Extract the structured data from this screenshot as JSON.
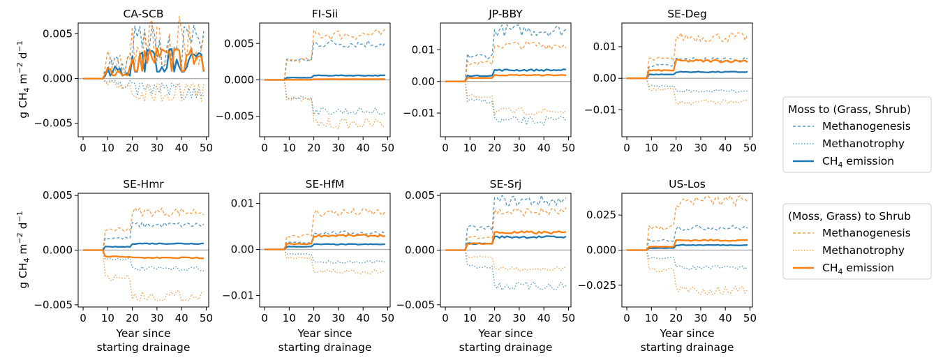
{
  "colors": {
    "blue": "#1f77b4",
    "orange": "#ff7f0e",
    "zero_line": "#b0b0b0"
  },
  "ylabel_prefix": "g CH",
  "ylabel_sub": "4",
  "ylabel_mid": " m",
  "ylabel_sup1": "−2",
  "ylabel_d": " d",
  "ylabel_sup2": "−1",
  "xlabel_line1": "Year since",
  "xlabel_line2": "starting drainage",
  "legends": [
    {
      "title": "Moss to (Grass, Shrub)",
      "color": "#1f77b4",
      "items": [
        {
          "label": "Methanogenesis",
          "style": "dashed"
        },
        {
          "label": "Methanotrophy",
          "style": "dotted"
        },
        {
          "label_main": "CH",
          "label_sub": "4",
          "label_rest": " emission",
          "style": "solid"
        }
      ]
    },
    {
      "title": "(Moss, Grass) to Shrub",
      "color": "#ff7f0e",
      "items": [
        {
          "label": "Methanogenesis",
          "style": "dashed"
        },
        {
          "label": "Methanotrophy",
          "style": "dotted"
        },
        {
          "label_main": "CH",
          "label_sub": "4",
          "label_rest": " emission",
          "style": "solid"
        }
      ]
    }
  ],
  "chart_data": [
    {
      "type": "line",
      "title": "CA-SCB",
      "xlim": [
        -2,
        51
      ],
      "ylim": [
        -0.0065,
        0.0062
      ],
      "xticks": [
        0,
        10,
        20,
        30,
        40,
        50
      ],
      "yticks": [
        -0.005,
        0,
        0.005
      ],
      "ytick_labels": [
        "−0.005",
        "0.000",
        "0.005"
      ],
      "volatile": true,
      "phases": {
        "blue": {
          "gen": [
            0,
            0.0019,
            0.004
          ],
          "troph": [
            0,
            -0.0007,
            -0.0015
          ],
          "emis": [
            0,
            0.0009,
            0.0022
          ]
        },
        "orange": {
          "gen": [
            0,
            0.002,
            0.0045
          ],
          "troph": [
            0,
            -0.0008,
            -0.0017
          ],
          "emis": [
            0,
            0.001,
            0.0024
          ]
        }
      }
    },
    {
      "type": "line",
      "title": "FI-Sii",
      "xlim": [
        -2,
        51
      ],
      "ylim": [
        -0.0078,
        0.0078
      ],
      "xticks": [
        0,
        10,
        20,
        30,
        40,
        50
      ],
      "yticks": [
        -0.005,
        0,
        0.005
      ],
      "ytick_labels": [
        "−0.005",
        "0.000",
        "0.005"
      ],
      "volatile": false,
      "phases": {
        "blue": {
          "gen": [
            0,
            0.0027,
            0.005
          ],
          "troph": [
            0,
            -0.0024,
            -0.0043
          ],
          "emis": [
            0,
            0.0003,
            0.0006
          ]
        },
        "orange": {
          "gen": [
            0,
            0.0027,
            0.0062
          ],
          "troph": [
            0,
            -0.0027,
            -0.006
          ],
          "emis": [
            0,
            2e-05,
            0.0001
          ]
        }
      }
    },
    {
      "type": "line",
      "title": "JP-BBY",
      "xlim": [
        -2,
        51
      ],
      "ylim": [
        -0.0175,
        0.0185
      ],
      "xticks": [
        0,
        10,
        20,
        30,
        40,
        50
      ],
      "yticks": [
        -0.01,
        0,
        0.01
      ],
      "ytick_labels": [
        "−0.01",
        "0.00",
        "0.01"
      ],
      "volatile": false,
      "phases": {
        "blue": {
          "gen": [
            0,
            0.008,
            0.0162
          ],
          "troph": [
            0,
            -0.0062,
            -0.0125
          ],
          "emis": [
            0,
            0.0018,
            0.0036
          ]
        },
        "orange": {
          "gen": [
            0,
            0.0058,
            0.0115
          ],
          "troph": [
            0,
            -0.0047,
            -0.0095
          ],
          "emis": [
            0,
            0.0011,
            0.002
          ]
        }
      }
    },
    {
      "type": "line",
      "title": "SE-Deg",
      "xlim": [
        -2,
        51
      ],
      "ylim": [
        -0.0185,
        0.0175
      ],
      "xticks": [
        0,
        10,
        20,
        30,
        40,
        50
      ],
      "yticks": [
        -0.01,
        0,
        0.01
      ],
      "ytick_labels": [
        "−0.01",
        "0.00",
        "0.01"
      ],
      "volatile": false,
      "phases": {
        "blue": {
          "gen": [
            0,
            0.004,
            0.006
          ],
          "troph": [
            0,
            -0.0025,
            -0.004
          ],
          "emis": [
            0,
            0.0012,
            0.002
          ]
        },
        "orange": {
          "gen": [
            0,
            0.006,
            0.013
          ],
          "troph": [
            0,
            -0.0035,
            -0.0075
          ],
          "emis": [
            0,
            0.0025,
            0.0055
          ]
        }
      }
    },
    {
      "type": "line",
      "title": "SE-Hmr",
      "xlim": [
        -2,
        51
      ],
      "ylim": [
        -0.0052,
        0.0052
      ],
      "xticks": [
        0,
        10,
        20,
        30,
        40,
        50
      ],
      "yticks": [
        -0.005,
        0,
        0.005
      ],
      "ytick_labels": [
        "−0.005",
        "0.000",
        "0.005"
      ],
      "volatile": false,
      "phases": {
        "blue": {
          "gen": [
            0,
            0.0011,
            0.0023
          ],
          "troph": [
            0,
            -0.0008,
            -0.0017
          ],
          "emis": [
            0,
            0.0003,
            0.0006
          ]
        },
        "orange": {
          "gen": [
            0,
            0.0019,
            0.0035
          ],
          "troph": [
            0,
            -0.0025,
            -0.0042
          ],
          "emis": [
            0,
            -0.0006,
            -0.0007
          ]
        }
      }
    },
    {
      "type": "line",
      "title": "SE-HfM",
      "xlim": [
        -2,
        51
      ],
      "ylim": [
        -0.0125,
        0.0122
      ],
      "xticks": [
        0,
        10,
        20,
        30,
        40,
        50
      ],
      "yticks": [
        -0.01,
        0,
        0.01
      ],
      "ytick_labels": [
        "−0.01",
        "0.00",
        "0.01"
      ],
      "volatile": false,
      "phases": {
        "blue": {
          "gen": [
            0,
            0.0015,
            0.0036
          ],
          "troph": [
            0,
            -0.001,
            -0.0027
          ],
          "emis": [
            0,
            0.0006,
            0.0011
          ]
        },
        "orange": {
          "gen": [
            0,
            0.003,
            0.008
          ],
          "troph": [
            0,
            -0.0018,
            -0.0048
          ],
          "emis": [
            0,
            0.0012,
            0.003
          ]
        }
      }
    },
    {
      "type": "line",
      "title": "SE-Srj",
      "xlim": [
        -2,
        51
      ],
      "ylim": [
        -0.0052,
        0.0052
      ],
      "xticks": [
        0,
        10,
        20,
        30,
        40,
        50
      ],
      "yticks": [
        -0.005,
        0,
        0.005
      ],
      "ytick_labels": [
        "−0.005",
        "0.000",
        "0.005"
      ],
      "volatile": false,
      "phases": {
        "blue": {
          "gen": [
            0,
            0.002,
            0.0045
          ],
          "troph": [
            0,
            -0.0015,
            -0.0033
          ],
          "emis": [
            0,
            0.0006,
            0.0012
          ]
        },
        "orange": {
          "gen": [
            0,
            0.0012,
            0.0035
          ],
          "troph": [
            0,
            -0.0006,
            -0.0017
          ],
          "emis": [
            0,
            0.0006,
            0.0016
          ]
        }
      }
    },
    {
      "type": "line",
      "title": "US-Los",
      "xlim": [
        -2,
        51
      ],
      "ylim": [
        -0.0405,
        0.0405
      ],
      "xticks": [
        0,
        10,
        20,
        30,
        40,
        50
      ],
      "yticks": [
        -0.025,
        0,
        0.025
      ],
      "ytick_labels": [
        "−0.025",
        "0.000",
        "0.025"
      ],
      "volatile": false,
      "phases": {
        "blue": {
          "gen": [
            0,
            0.007,
            0.016
          ],
          "troph": [
            0,
            -0.0055,
            -0.0125
          ],
          "emis": [
            0,
            0.0015,
            0.0036
          ]
        },
        "orange": {
          "gen": [
            0,
            0.016,
            0.035
          ],
          "troph": [
            0,
            -0.014,
            -0.0285
          ],
          "emis": [
            0,
            0.0024,
            0.007
          ]
        }
      }
    }
  ]
}
